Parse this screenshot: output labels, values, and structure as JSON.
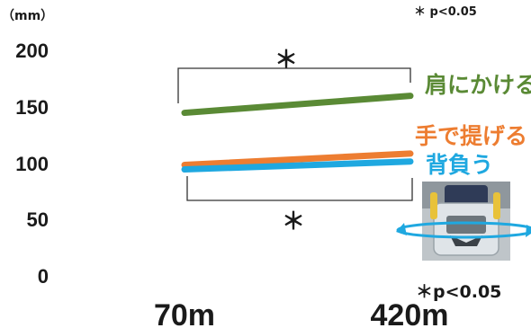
{
  "chart_data": {
    "type": "line",
    "unit_label": "（mm）",
    "x": [
      "70m",
      "420m"
    ],
    "ylim": [
      0,
      200
    ],
    "yticks": [
      "0",
      "50",
      "100",
      "150",
      "200"
    ],
    "grid": false,
    "legend": "inline-right",
    "series": [
      {
        "name": "肩にかける",
        "values": [
          144,
          159
        ],
        "color": "#5a8a35"
      },
      {
        "name": "手で提げる",
        "values": [
          98,
          108
        ],
        "color": "#ed7d31"
      },
      {
        "name": "背負う",
        "values": [
          94,
          101
        ],
        "color": "#1fa8e0"
      }
    ],
    "significance": [
      {
        "label": "＊",
        "between": [
          "肩にかける",
          "手で提げる"
        ]
      },
      {
        "label": "＊",
        "between": [
          "手で提げる",
          "背負う"
        ]
      }
    ],
    "notes": {
      "top_right": "＊ p<0.05",
      "bottom_right": "＊p<0.05"
    }
  }
}
